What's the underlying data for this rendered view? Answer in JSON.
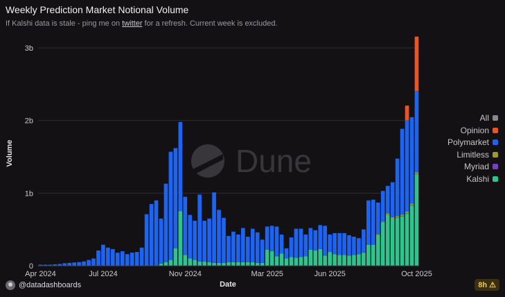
{
  "header": {
    "title": "Weekly Prediction Market Notional Volume",
    "subtitle_before": "If Kalshi data is stale - ping me on ",
    "subtitle_link": "twitter",
    "subtitle_after": " for a refresh. Current week is excluded."
  },
  "watermark": "Dune",
  "footer": {
    "author": "@datadashboards",
    "badge": "8h",
    "badge_icon": "warning-icon"
  },
  "legend": [
    {
      "label": "All",
      "color": "#8a8790"
    },
    {
      "label": "Opinion",
      "color": "#f0541e"
    },
    {
      "label": "Polymarket",
      "color": "#1d64f2"
    },
    {
      "label": "Limitless",
      "color": "#9b9930"
    },
    {
      "label": "Myriad",
      "color": "#7b3fc7"
    },
    {
      "label": "Kalshi",
      "color": "#2fc48e"
    }
  ],
  "chart_data": {
    "type": "bar",
    "stacked": true,
    "xlabel": "Date",
    "ylabel": "Volume",
    "ylim": [
      0,
      3200000000
    ],
    "y_ticks": [
      {
        "value": 0,
        "label": "0"
      },
      {
        "value": 1000000000,
        "label": "1b"
      },
      {
        "value": 2000000000,
        "label": "2b"
      },
      {
        "value": 3000000000,
        "label": "3b"
      }
    ],
    "x_ticks": [
      {
        "label": "Apr 2024",
        "index": 0
      },
      {
        "label": "Jul 2024",
        "index": 13
      },
      {
        "label": "Nov 2024",
        "index": 30
      },
      {
        "label": "Mar 2025",
        "index": 47
      },
      {
        "label": "Jun 2025",
        "index": 60
      },
      {
        "label": "Oct 2025",
        "index": 78
      }
    ],
    "grid": true,
    "legend_position": "right",
    "series": [
      {
        "name": "Kalshi",
        "color": "#2fc48e",
        "values": [
          0,
          0,
          0,
          0,
          0,
          0,
          0,
          0,
          0,
          0,
          0,
          0,
          0,
          0,
          0,
          0,
          0,
          0,
          0,
          0,
          0,
          0,
          0,
          0,
          0,
          30000000,
          50000000,
          80000000,
          240000000,
          750000000,
          150000000,
          100000000,
          80000000,
          60000000,
          60000000,
          50000000,
          40000000,
          40000000,
          40000000,
          50000000,
          50000000,
          50000000,
          50000000,
          50000000,
          50000000,
          40000000,
          40000000,
          220000000,
          200000000,
          130000000,
          170000000,
          100000000,
          120000000,
          110000000,
          120000000,
          130000000,
          220000000,
          210000000,
          230000000,
          140000000,
          190000000,
          160000000,
          150000000,
          150000000,
          140000000,
          150000000,
          160000000,
          180000000,
          290000000,
          290000000,
          420000000,
          600000000,
          700000000,
          650000000,
          660000000,
          680000000,
          720000000,
          830000000,
          1260000000
        ]
      },
      {
        "name": "Myriad",
        "color": "#7b3fc7",
        "values": [
          0,
          0,
          0,
          0,
          0,
          0,
          0,
          0,
          0,
          0,
          0,
          0,
          0,
          0,
          0,
          0,
          0,
          0,
          0,
          0,
          0,
          0,
          0,
          0,
          0,
          0,
          0,
          0,
          0,
          0,
          0,
          0,
          0,
          0,
          0,
          0,
          0,
          0,
          0,
          0,
          0,
          0,
          0,
          0,
          0,
          0,
          0,
          0,
          0,
          0,
          0,
          0,
          0,
          0,
          0,
          0,
          0,
          0,
          0,
          0,
          0,
          0,
          0,
          0,
          0,
          0,
          0,
          0,
          0,
          0,
          0,
          0,
          0,
          0,
          5000000,
          5000000,
          5000000,
          5000000,
          5000000
        ]
      },
      {
        "name": "Limitless",
        "color": "#9b9930",
        "values": [
          0,
          0,
          0,
          0,
          0,
          0,
          0,
          0,
          0,
          0,
          0,
          0,
          0,
          0,
          0,
          0,
          0,
          0,
          0,
          0,
          0,
          0,
          0,
          0,
          0,
          0,
          0,
          0,
          0,
          0,
          0,
          0,
          0,
          0,
          0,
          0,
          0,
          0,
          0,
          0,
          0,
          0,
          0,
          0,
          0,
          0,
          0,
          0,
          0,
          0,
          0,
          0,
          0,
          0,
          0,
          0,
          0,
          0,
          0,
          0,
          0,
          0,
          0,
          0,
          0,
          0,
          0,
          0,
          0,
          0,
          10000000,
          10000000,
          20000000,
          20000000,
          20000000,
          20000000,
          20000000,
          20000000,
          20000000
        ]
      },
      {
        "name": "Polymarket",
        "color": "#1d64f2",
        "values": [
          15000000,
          15000000,
          15000000,
          20000000,
          25000000,
          35000000,
          40000000,
          45000000,
          50000000,
          60000000,
          80000000,
          100000000,
          210000000,
          290000000,
          250000000,
          230000000,
          180000000,
          200000000,
          160000000,
          180000000,
          190000000,
          250000000,
          710000000,
          850000000,
          900000000,
          620000000,
          1080000000,
          1490000000,
          1380000000,
          1230000000,
          800000000,
          600000000,
          540000000,
          920000000,
          560000000,
          600000000,
          970000000,
          730000000,
          620000000,
          360000000,
          420000000,
          380000000,
          470000000,
          350000000,
          460000000,
          420000000,
          320000000,
          320000000,
          350000000,
          410000000,
          260000000,
          140000000,
          270000000,
          400000000,
          390000000,
          300000000,
          300000000,
          280000000,
          330000000,
          410000000,
          240000000,
          290000000,
          300000000,
          300000000,
          280000000,
          250000000,
          220000000,
          320000000,
          610000000,
          620000000,
          440000000,
          420000000,
          380000000,
          480000000,
          790000000,
          1180000000,
          1260000000,
          1190000000,
          1120000000
        ]
      },
      {
        "name": "Opinion",
        "color": "#f0541e",
        "values": [
          0,
          0,
          0,
          0,
          0,
          0,
          0,
          0,
          0,
          0,
          0,
          0,
          0,
          0,
          0,
          0,
          0,
          0,
          0,
          0,
          0,
          0,
          0,
          0,
          0,
          0,
          0,
          0,
          0,
          0,
          0,
          0,
          0,
          0,
          0,
          0,
          0,
          0,
          0,
          0,
          0,
          0,
          0,
          0,
          0,
          0,
          0,
          0,
          0,
          0,
          0,
          0,
          0,
          0,
          0,
          0,
          0,
          0,
          0,
          0,
          0,
          0,
          0,
          0,
          0,
          0,
          0,
          0,
          0,
          0,
          0,
          0,
          0,
          0,
          0,
          0,
          200000000,
          0,
          750000000
        ]
      }
    ]
  }
}
